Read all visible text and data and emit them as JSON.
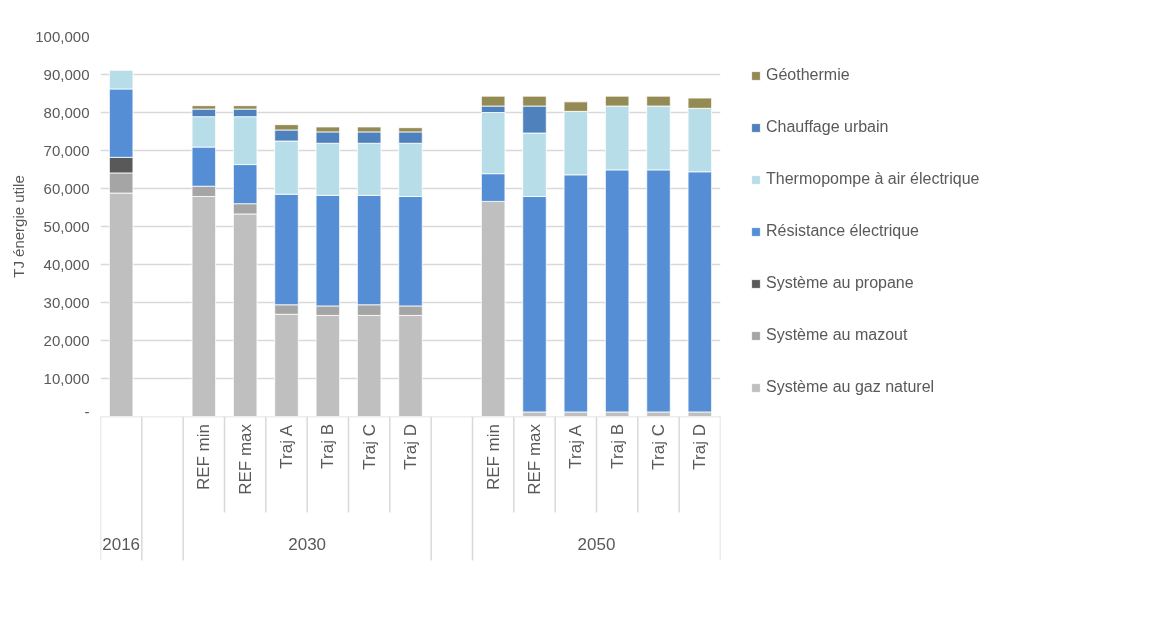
{
  "chart_data": {
    "type": "bar",
    "stacked": true,
    "ylabel": "TJ énergie utile",
    "categories": [
      null,
      null,
      "REF min",
      "REF max",
      "Traj A",
      "Traj B",
      "Traj C",
      "Traj D",
      null,
      "REF min",
      "REF max",
      "Traj A",
      "Traj B",
      "Traj C",
      "Traj D"
    ],
    "annotations": [
      "2016",
      "2030",
      "2050"
    ],
    "ylim": [
      0,
      100000
    ],
    "yticks": [
      {
        "value": 0,
        "label": "-"
      },
      {
        "value": 10000,
        "label": "10,000"
      },
      {
        "value": 20000,
        "label": "20,000"
      },
      {
        "value": 30000,
        "label": "30,000"
      },
      {
        "value": 40000,
        "label": "40,000"
      },
      {
        "value": 50000,
        "label": "50,000"
      },
      {
        "value": 60000,
        "label": "60,000"
      },
      {
        "value": 70000,
        "label": "70,000"
      },
      {
        "value": 80000,
        "label": "80,000"
      },
      {
        "value": 90000,
        "label": "90,000"
      },
      {
        "value": 100000,
        "label": "100,000"
      }
    ],
    "grid": "y",
    "legend": "right",
    "series": [
      {
        "name": "Système au gaz naturel",
        "color": "#bfbfbf",
        "values": [
          58800,
          null,
          57900,
          53300,
          26900,
          26600,
          26600,
          26600,
          null,
          56600,
          1200,
          1200,
          1200,
          1200,
          1200
        ]
      },
      {
        "name": "Système au mazout",
        "color": "#a5a5a5",
        "values": [
          5300,
          null,
          2700,
          2700,
          2500,
          2500,
          2800,
          2500,
          null,
          null,
          null,
          null,
          null,
          null,
          null
        ]
      },
      {
        "name": "Système au propane",
        "color": "#595959",
        "values": [
          4100,
          null,
          null,
          null,
          null,
          null,
          null,
          null,
          null,
          null,
          null,
          null,
          null,
          null,
          null
        ]
      },
      {
        "name": "Résistance électrique",
        "color": "#558ed5",
        "values": [
          18000,
          null,
          10300,
          10300,
          29100,
          29100,
          28800,
          28800,
          null,
          7300,
          56700,
          62400,
          63700,
          63700,
          63200
        ]
      },
      {
        "name": "Thermopompe à air électrique",
        "color": "#b7dde8",
        "values": [
          4900,
          null,
          8000,
          12600,
          14000,
          13700,
          13700,
          14000,
          null,
          16100,
          16700,
          16700,
          16800,
          16800,
          16700
        ]
      },
      {
        "name": "Chauffage urbain",
        "color": "#4f81bd",
        "values": [
          null,
          null,
          2000,
          2000,
          2900,
          3000,
          3000,
          3000,
          null,
          1700,
          7100,
          null,
          null,
          null,
          null
        ]
      },
      {
        "name": "Géothermie",
        "color": "#948a54",
        "values": [
          null,
          null,
          900,
          900,
          1400,
          1300,
          1300,
          1100,
          null,
          2600,
          2600,
          2500,
          2600,
          2600,
          2700
        ]
      }
    ]
  }
}
